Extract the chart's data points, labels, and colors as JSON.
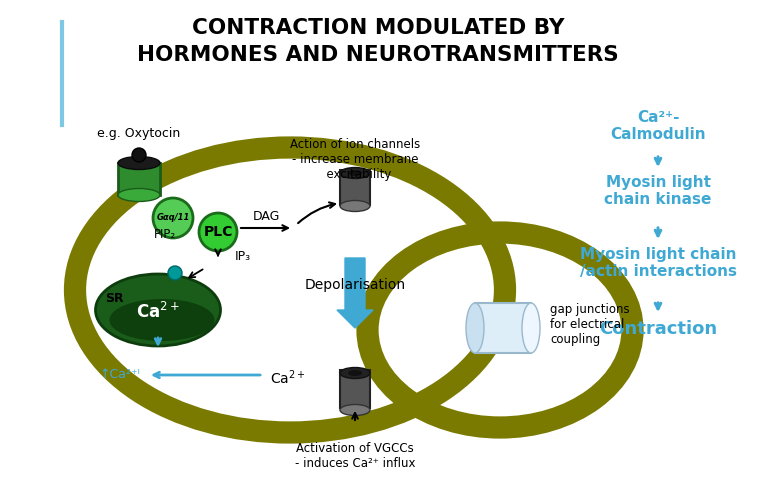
{
  "bg_color": "#ffffff",
  "blue_line_color": "#7ec8e3",
  "dark_olive": "#7a7a00",
  "title_line1": "CONTRACTION MODULATED BY",
  "title_line2": "HORMONES AND NEUROTRANSMITTERS",
  "black": "#000000",
  "blue_arrow": "#3fa9d4",
  "text_blue": "#3fa9d4",
  "green_body": "#2e8b2e",
  "green_bright": "#44dd44",
  "green_dark": "#1a5c1a",
  "green_gaq": "#55cc55",
  "gray_channel": "#555555",
  "teal_dot": "#009999",
  "gap_white": "#dff0f8",
  "annotations": {
    "oxytocin": "e.g. Oxytocin",
    "ion_channel": "Action of ion channels\n- increase membrane\n  excitability",
    "depolarisation": "Depolarisation",
    "activation_vgcc": "Activation of VGCCs\n- induces Ca²⁺ influx",
    "gap_junctions": "gap junctions\nfor electrical\ncoupling",
    "sr": "SR",
    "pip2": "PIP₂",
    "plc": "PLC",
    "dag": "DAG",
    "ip3": "IP₃",
    "ca_i": "↑Ca²⁺ᴵ",
    "calmodulin": "Ca²⁺-\nCalmodulin",
    "mlck": "Myosin light\nchain kinase",
    "mlc_actin": "Myosin light chain\n/actin interactions",
    "contraction": "Contraction",
    "gaq": "Gαq/11"
  }
}
